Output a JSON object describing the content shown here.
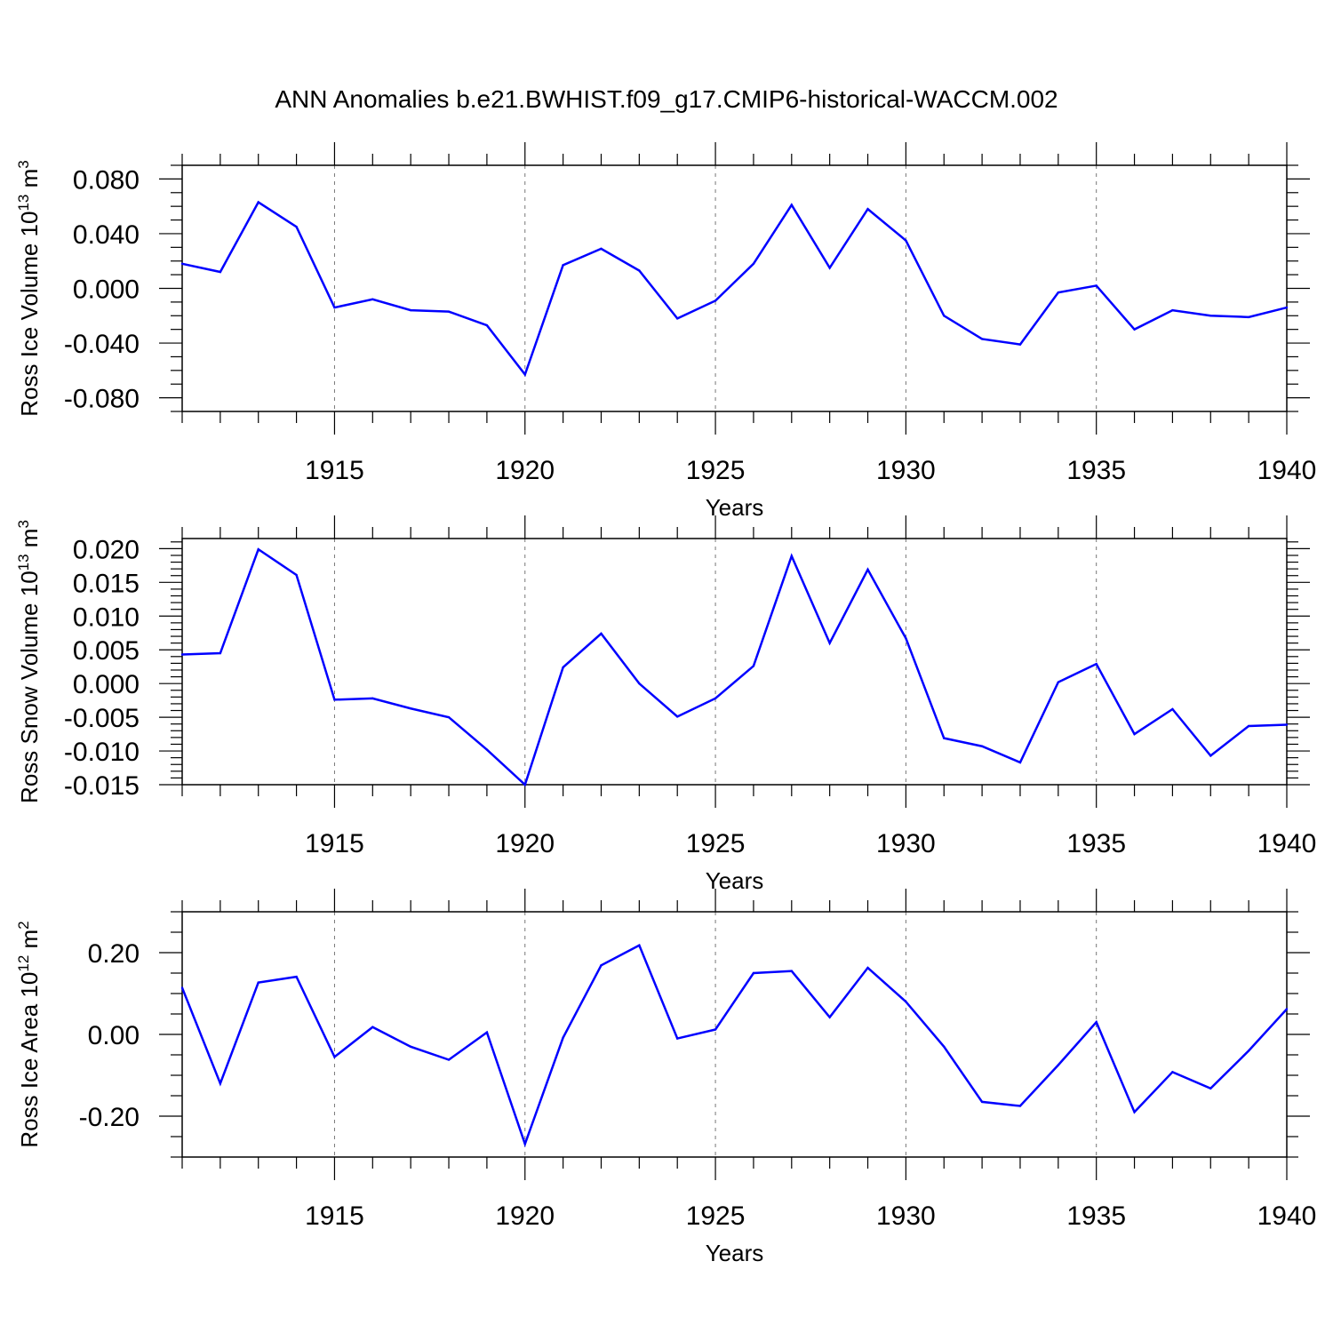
{
  "title": "ANN Anomalies b.e21.BWHIST.f09_g17.CMIP6-historical-WACCM.002",
  "colors": {
    "line": "#0000ff",
    "axis": "#000000",
    "grid": "#777777"
  },
  "chart_data": [
    {
      "type": "line",
      "ylabel_main": "Ross Ice Volume 10",
      "ylabel_exp": "13",
      "ylabel_unit": "m",
      "ylabel_unit_exp": "3",
      "xlabel": "Years",
      "xlim": [
        1911,
        1940
      ],
      "ylim": [
        -0.09,
        0.09
      ],
      "xticks": [
        1915,
        1920,
        1925,
        1930,
        1935,
        1940
      ],
      "xtick_labels": [
        "1915",
        "1920",
        "1925",
        "1930",
        "1935",
        "1940"
      ],
      "yticks": [
        -0.08,
        -0.04,
        0.0,
        0.04,
        0.08
      ],
      "ytick_labels": [
        "-0.080",
        "-0.040",
        "0.000",
        "0.040",
        "0.080"
      ],
      "x": [
        1911,
        1912,
        1913,
        1914,
        1915,
        1916,
        1917,
        1918,
        1919,
        1920,
        1921,
        1922,
        1923,
        1924,
        1925,
        1926,
        1927,
        1928,
        1929,
        1930,
        1931,
        1932,
        1933,
        1934,
        1935,
        1936,
        1937,
        1938,
        1939,
        1940
      ],
      "series": [
        {
          "name": "Ross Ice Volume",
          "values": [
            0.018,
            0.012,
            0.063,
            0.045,
            -0.014,
            -0.008,
            -0.016,
            -0.017,
            -0.027,
            -0.063,
            0.017,
            0.029,
            0.013,
            -0.022,
            -0.009,
            0.018,
            0.061,
            0.015,
            0.058,
            0.035,
            -0.02,
            -0.037,
            -0.041,
            -0.003,
            0.002,
            -0.03,
            -0.016,
            -0.02,
            -0.021,
            -0.014
          ]
        }
      ]
    },
    {
      "type": "line",
      "ylabel_main": "Ross Snow Volume 10",
      "ylabel_exp": "13",
      "ylabel_unit": "m",
      "ylabel_unit_exp": "3",
      "xlabel": "Years",
      "xlim": [
        1911,
        1940
      ],
      "ylim": [
        -0.015,
        0.0215
      ],
      "xticks": [
        1915,
        1920,
        1925,
        1930,
        1935,
        1940
      ],
      "xtick_labels": [
        "1915",
        "1920",
        "1925",
        "1930",
        "1935",
        "1940"
      ],
      "yticks": [
        -0.015,
        -0.01,
        -0.005,
        0.0,
        0.005,
        0.01,
        0.015,
        0.02
      ],
      "ytick_labels": [
        "-0.015",
        "-0.010",
        "-0.005",
        "0.000",
        "0.005",
        "0.010",
        "0.015",
        "0.020"
      ],
      "x": [
        1911,
        1912,
        1913,
        1914,
        1915,
        1916,
        1917,
        1918,
        1919,
        1920,
        1921,
        1922,
        1923,
        1924,
        1925,
        1926,
        1927,
        1928,
        1929,
        1930,
        1931,
        1932,
        1933,
        1934,
        1935,
        1936,
        1937,
        1938,
        1939,
        1940
      ],
      "series": [
        {
          "name": "Ross Snow Volume",
          "values": [
            0.0043,
            0.0045,
            0.0199,
            0.0161,
            -0.0024,
            -0.0022,
            -0.0037,
            -0.005,
            -0.0098,
            -0.015,
            0.0024,
            0.0074,
            0.0,
            -0.0049,
            -0.0022,
            0.0026,
            0.0189,
            0.006,
            0.0169,
            0.0067,
            -0.0081,
            -0.0093,
            -0.0117,
            0.0002,
            0.0029,
            -0.0075,
            -0.0038,
            -0.0107,
            -0.0063,
            -0.0061
          ]
        }
      ]
    },
    {
      "type": "line",
      "ylabel_main": "Ross Ice Area 10",
      "ylabel_exp": "12",
      "ylabel_unit": "m",
      "ylabel_unit_exp": "2",
      "xlabel": "Years",
      "xlim": [
        1911,
        1940
      ],
      "ylim": [
        -0.3,
        0.3
      ],
      "xticks": [
        1915,
        1920,
        1925,
        1930,
        1935,
        1940
      ],
      "xtick_labels": [
        "1915",
        "1920",
        "1925",
        "1930",
        "1935",
        "1940"
      ],
      "yticks": [
        -0.2,
        0.0,
        0.2
      ],
      "ytick_labels": [
        "-0.20",
        "0.00",
        "0.20"
      ],
      "x": [
        1911,
        1912,
        1913,
        1914,
        1915,
        1916,
        1917,
        1918,
        1919,
        1920,
        1921,
        1922,
        1923,
        1924,
        1925,
        1926,
        1927,
        1928,
        1929,
        1930,
        1931,
        1932,
        1933,
        1934,
        1935,
        1936,
        1937,
        1938,
        1939,
        1940
      ],
      "series": [
        {
          "name": "Ross Ice Area",
          "values": [
            0.114,
            -0.12,
            0.127,
            0.141,
            -0.055,
            0.018,
            -0.03,
            -0.062,
            0.005,
            -0.268,
            -0.008,
            0.169,
            0.218,
            -0.01,
            0.012,
            0.15,
            0.155,
            0.042,
            0.163,
            0.08,
            -0.03,
            -0.165,
            -0.175,
            -0.075,
            0.03,
            -0.19,
            -0.092,
            -0.132,
            -0.04,
            0.062
          ]
        }
      ]
    }
  ]
}
